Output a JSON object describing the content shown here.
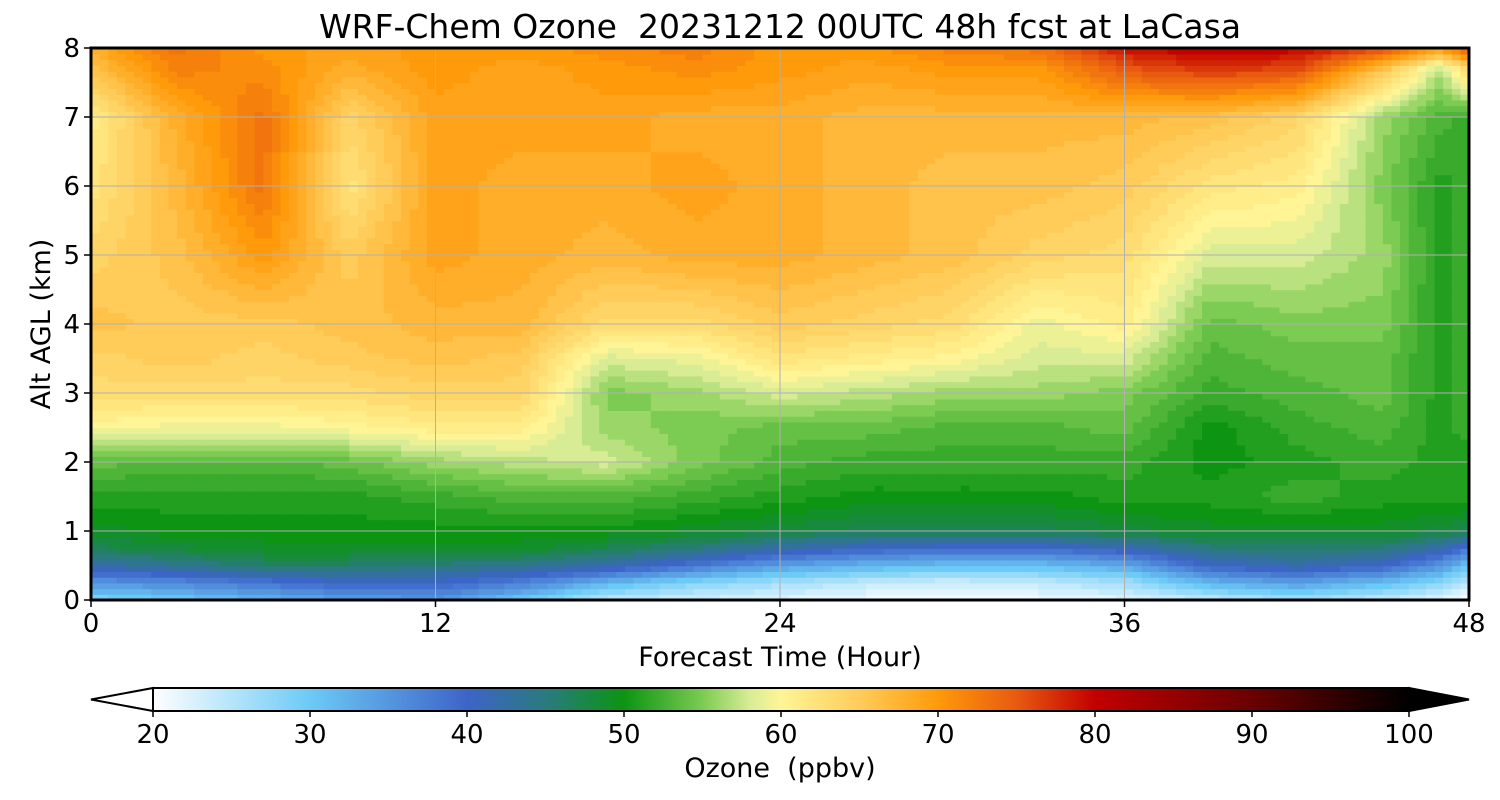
{
  "chart_data": {
    "type": "heatmap",
    "title": "WRF-Chem Ozone  20231212 00UTC 48h fcst at LaCasa",
    "xlabel": "Forecast Time (Hour)",
    "ylabel": "Alt AGL (km)",
    "xlim": [
      0,
      48
    ],
    "ylim": [
      0,
      8
    ],
    "x_ticks": [
      0,
      12,
      24,
      36,
      48
    ],
    "y_ticks": [
      0,
      1,
      2,
      3,
      4,
      5,
      6,
      7,
      8
    ],
    "grid": true,
    "x_hours": [
      0,
      3,
      6,
      9,
      12,
      15,
      18,
      21,
      24,
      27,
      30,
      33,
      36,
      39,
      42,
      45,
      47,
      48
    ],
    "y_km": [
      0,
      0.25,
      0.5,
      0.75,
      1,
      1.5,
      2,
      2.5,
      3,
      3.5,
      4,
      5,
      6,
      7,
      7.7,
      8
    ],
    "values_ppbv": [
      [
        28,
        30,
        32,
        34,
        35,
        30,
        24,
        23,
        22,
        21,
        20,
        21,
        22,
        24,
        26,
        24,
        22,
        20
      ],
      [
        35,
        36,
        38,
        40,
        40,
        37,
        32,
        28,
        26,
        24,
        23,
        24,
        26,
        32,
        34,
        31,
        28,
        24
      ],
      [
        42,
        44,
        46,
        46,
        45,
        44,
        42,
        38,
        34,
        32,
        31,
        31,
        33,
        40,
        42,
        40,
        35,
        30
      ],
      [
        47,
        48,
        49,
        49,
        49,
        49,
        47,
        45,
        42,
        40,
        39,
        39,
        41,
        45,
        46,
        45,
        42,
        38
      ],
      [
        49,
        50,
        50,
        50,
        50,
        50,
        50,
        49,
        48,
        47,
        47,
        47,
        48,
        49,
        49,
        49,
        48,
        47
      ],
      [
        51,
        51,
        51,
        51,
        52,
        53,
        53,
        52,
        51,
        50,
        50,
        50,
        51,
        51,
        52,
        51,
        51,
        51
      ],
      [
        54,
        53,
        53,
        54,
        56,
        57,
        58,
        55,
        53,
        52,
        52,
        52,
        52,
        50,
        51,
        52,
        51,
        51
      ],
      [
        60,
        59,
        59,
        60,
        61,
        61,
        56,
        55,
        54,
        54,
        53,
        53,
        54,
        50,
        52,
        53,
        51,
        52
      ],
      [
        63,
        63,
        63,
        63,
        64,
        64,
        55,
        56,
        58,
        57,
        56,
        56,
        55,
        52,
        53,
        54,
        51,
        52
      ],
      [
        64,
        65,
        64,
        65,
        66,
        65,
        58,
        59,
        62,
        61,
        60,
        58,
        58,
        53,
        54,
        54,
        51,
        52
      ],
      [
        66,
        65,
        65,
        66,
        67,
        67,
        63,
        63,
        65,
        64,
        63,
        59,
        61,
        54,
        55,
        55,
        51,
        52
      ],
      [
        64,
        66,
        70,
        65,
        69,
        68,
        67,
        68,
        68,
        67,
        66,
        64,
        63,
        58,
        58,
        56,
        51,
        52
      ],
      [
        62,
        67,
        73,
        62,
        69,
        68,
        68,
        69,
        68,
        67,
        66,
        66,
        65,
        62,
        61,
        55,
        51,
        52
      ],
      [
        61,
        68,
        73,
        64,
        69,
        69,
        69,
        68,
        68,
        67,
        67,
        67,
        67,
        66,
        64,
        56,
        53,
        52
      ],
      [
        66,
        72,
        71,
        68,
        70,
        69,
        70,
        71,
        70,
        69,
        70,
        70,
        75,
        77,
        76,
        66,
        57,
        64
      ],
      [
        68,
        73,
        70,
        69,
        70,
        70,
        71,
        72,
        70,
        70,
        72,
        73,
        79,
        81,
        80,
        76,
        70,
        75
      ]
    ],
    "colorbar": {
      "label": "Ozone  (ppbv)",
      "min": 20,
      "max": 100,
      "ticks": [
        20,
        30,
        40,
        50,
        60,
        70,
        80,
        90,
        100
      ],
      "extend": "both",
      "stops": [
        {
          "v": 20,
          "color": "#ffffff"
        },
        {
          "v": 30,
          "color": "#6ccaf6"
        },
        {
          "v": 40,
          "color": "#3d64c8"
        },
        {
          "v": 45,
          "color": "#2a7a80"
        },
        {
          "v": 50,
          "color": "#0c9412"
        },
        {
          "v": 55,
          "color": "#7ccb52"
        },
        {
          "v": 58,
          "color": "#d8ec96"
        },
        {
          "v": 60,
          "color": "#fff596"
        },
        {
          "v": 65,
          "color": "#ffcc5a"
        },
        {
          "v": 70,
          "color": "#ff9a0a"
        },
        {
          "v": 75,
          "color": "#e85a10"
        },
        {
          "v": 80,
          "color": "#c20000"
        },
        {
          "v": 90,
          "color": "#6a0000"
        },
        {
          "v": 100,
          "color": "#000000"
        }
      ]
    }
  }
}
